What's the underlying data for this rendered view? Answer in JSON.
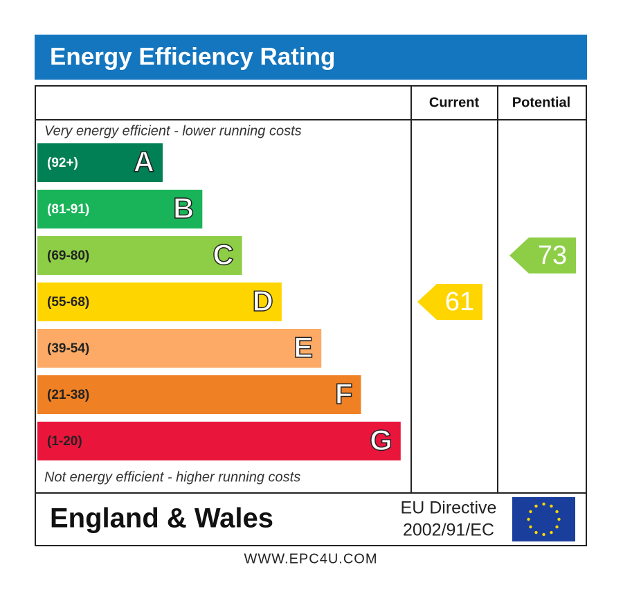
{
  "title": "Energy Efficiency Rating",
  "columns": [
    "Current",
    "Potential"
  ],
  "notes": {
    "top": "Very energy efficient - lower running costs",
    "bottom": "Not energy efficient - higher running costs"
  },
  "bands": [
    {
      "range": "(92+)",
      "letter": "A",
      "color": "#008054"
    },
    {
      "range": "(81-91)",
      "letter": "B",
      "color": "#19b459"
    },
    {
      "range": "(69-80)",
      "letter": "C",
      "color": "#8dce46"
    },
    {
      "range": "(55-68)",
      "letter": "D",
      "color": "#ffd500"
    },
    {
      "range": "(39-54)",
      "letter": "E",
      "color": "#fcaa65"
    },
    {
      "range": "(21-38)",
      "letter": "F",
      "color": "#ef8023"
    },
    {
      "range": "(1-20)",
      "letter": "G",
      "color": "#e9153b"
    }
  ],
  "current": 61,
  "potential": 73,
  "footer": {
    "region": "England & Wales",
    "directive": [
      "EU Directive",
      "2002/91/EC"
    ]
  },
  "website": "WWW.EPC4U.COM"
}
